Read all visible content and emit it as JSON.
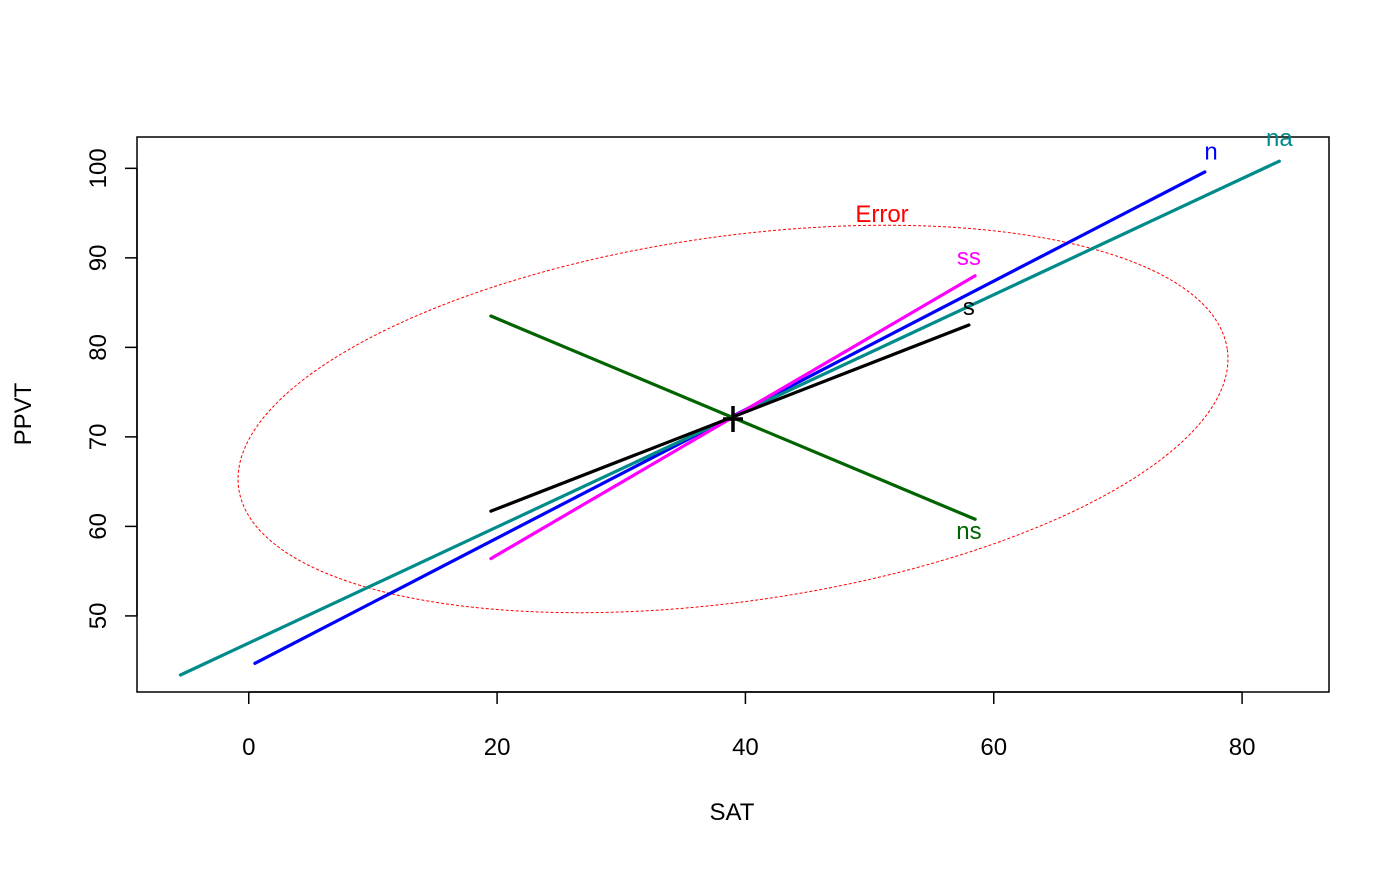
{
  "chart_data": {
    "type": "line",
    "title": "",
    "xlabel": "SAT",
    "ylabel": "PPVT",
    "xlim": [
      -9,
      87
    ],
    "ylim": [
      41.5,
      103.5
    ],
    "x_ticks": [
      0,
      20,
      40,
      60,
      80
    ],
    "y_ticks": [
      50,
      60,
      70,
      80,
      90,
      100
    ],
    "grid": false,
    "legend": "none",
    "centroid": {
      "x": 39,
      "y": 72
    },
    "series": [
      {
        "name": "n",
        "color": "#0000ff",
        "x": [
          0.5,
          77
        ],
        "y": [
          44.7,
          99.6
        ]
      },
      {
        "name": "na",
        "color": "#008b8b",
        "x": [
          -5.5,
          83
        ],
        "y": [
          43.4,
          100.8
        ]
      },
      {
        "name": "ss",
        "color": "#ff00ff",
        "x": [
          19.5,
          58.5
        ],
        "y": [
          56.4,
          88
        ]
      },
      {
        "name": "s",
        "color": "#000000",
        "x": [
          19.5,
          58
        ],
        "y": [
          61.7,
          82.5
        ]
      },
      {
        "name": "ns",
        "color": "#006400",
        "x": [
          19.5,
          58.5
        ],
        "y": [
          83.5,
          60.8
        ]
      }
    ],
    "error_ellipse": {
      "name": "Error",
      "color": "#ff0000",
      "style": "dotted",
      "center": {
        "x": 39,
        "y": 72
      },
      "x_extent": [
        -1.2,
        79.2
      ],
      "y_extent": [
        51.6,
        92.4
      ],
      "tilt_deg": 8
    },
    "label_positions": {
      "n": {
        "x": 77.5,
        "y": 101
      },
      "na": {
        "x": 83,
        "y": 102.5
      },
      "ss": {
        "x": 58,
        "y": 89.2
      },
      "s": {
        "x": 58,
        "y": 83.6
      },
      "ns": {
        "x": 58,
        "y": 58.6
      },
      "Error": {
        "x": 51,
        "y": 94
      }
    }
  }
}
